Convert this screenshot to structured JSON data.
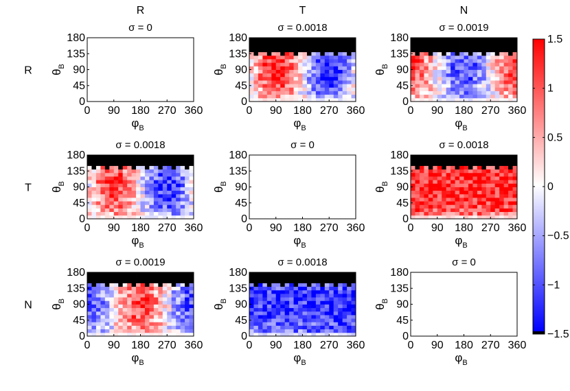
{
  "figure": {
    "column_headers": [
      "R",
      "T",
      "N"
    ],
    "row_labels": [
      "R",
      "T",
      "N"
    ]
  },
  "colorbar": {
    "ticks": [
      "1.5",
      "1",
      "0.5",
      "0",
      "−0.5",
      "−1",
      "−1.5"
    ],
    "tick_values": [
      1.5,
      1,
      0.5,
      0,
      -0.5,
      -1,
      -1.5
    ],
    "range": [
      -1.5,
      1.5
    ],
    "colors": {
      "positive": "#ff0000",
      "zero": "#ffffff",
      "negative": "#0000ff",
      "nodata": "#000000"
    }
  },
  "chart_data": {
    "type": "heatmap",
    "x_symbol": "φ",
    "y_symbol": "θ",
    "axis_subscript": "B",
    "xticks": [
      "0",
      "90",
      "180",
      "270",
      "360"
    ],
    "yticks": [
      "0",
      "45",
      "90",
      "135",
      "180"
    ],
    "xlim": [
      0,
      360
    ],
    "ylim": [
      0,
      180
    ],
    "grid_size": {
      "phi_bins": 24,
      "theta_bins": 18
    },
    "panels": [
      {
        "row": "R",
        "col": "R",
        "title": "σ = 0",
        "pattern": "empty",
        "max_theta_row": 17
      },
      {
        "row": "R",
        "col": "T",
        "title": "σ = 0.0018",
        "pattern": "sinphi",
        "sign": 1,
        "amplitude": 1.3,
        "max_theta_row": 13
      },
      {
        "row": "R",
        "col": "N",
        "title": "σ = 0.0019",
        "pattern": "cosphi",
        "sign": 1,
        "amplitude": 1.1,
        "max_theta_row": 13
      },
      {
        "row": "T",
        "col": "R",
        "title": "σ = 0.0018",
        "pattern": "sinphi",
        "sign": 1,
        "amplitude": 1.2,
        "max_theta_row": 14
      },
      {
        "row": "T",
        "col": "T",
        "title": "σ = 0",
        "pattern": "empty",
        "max_theta_row": 17
      },
      {
        "row": "T",
        "col": "N",
        "title": "σ = 0.0018",
        "pattern": "uniform",
        "sign": 1,
        "amplitude": 1.3,
        "max_theta_row": 14
      },
      {
        "row": "N",
        "col": "R",
        "title": "σ = 0.0019",
        "pattern": "cosphi",
        "sign": -1,
        "amplitude": 1.1,
        "max_theta_row": 14
      },
      {
        "row": "N",
        "col": "T",
        "title": "σ = 0.0018",
        "pattern": "uniform",
        "sign": -1,
        "amplitude": 1.2,
        "max_theta_row": 14
      },
      {
        "row": "N",
        "col": "N",
        "title": "σ = 0",
        "pattern": "empty",
        "max_theta_row": 17
      }
    ]
  }
}
